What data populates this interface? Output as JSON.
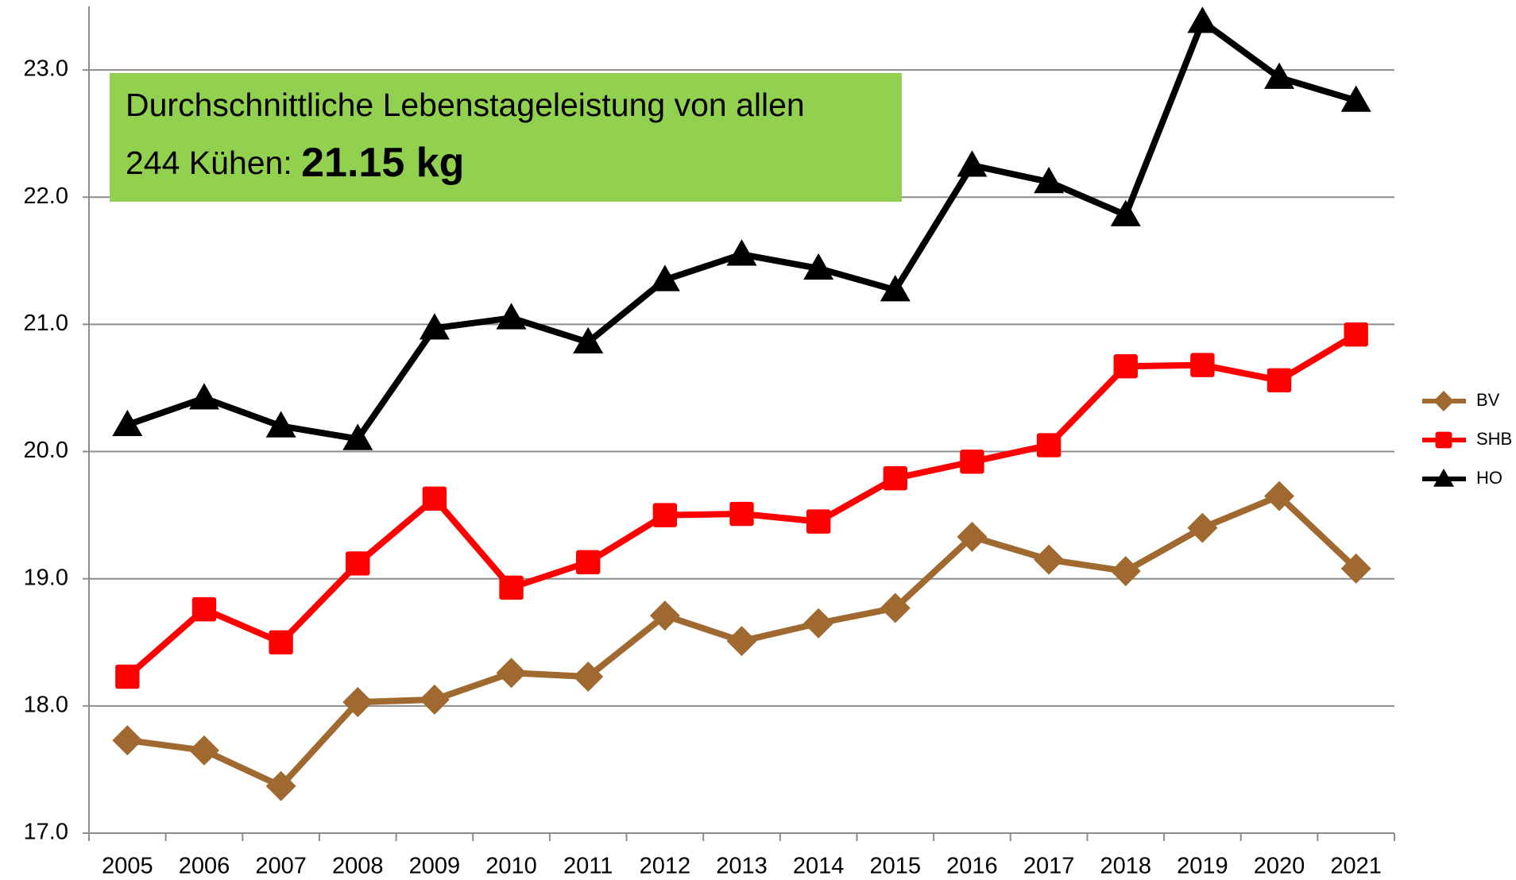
{
  "chart_data": {
    "type": "line",
    "annotation": {
      "line1": "Durchschnittliche Lebenstageleistung von allen",
      "line2": "244 Kühen: ",
      "highlight": "21.15 kg",
      "background": "#92d050"
    },
    "categories": [
      "2005",
      "2006",
      "2007",
      "2008",
      "2009",
      "2010",
      "2011",
      "2012",
      "2013",
      "2014",
      "2015",
      "2016",
      "2017",
      "2018",
      "2019",
      "2020",
      "2021"
    ],
    "series": [
      {
        "name": "BV",
        "color": "#a0692f",
        "marker": "diamond",
        "values": [
          17.73,
          17.65,
          17.37,
          18.03,
          18.05,
          18.26,
          18.23,
          18.71,
          18.51,
          18.65,
          18.77,
          19.33,
          19.15,
          19.06,
          19.4,
          19.65,
          19.08
        ]
      },
      {
        "name": "SHB",
        "color": "#ff0000",
        "marker": "square",
        "values": [
          18.23,
          18.76,
          18.5,
          19.12,
          19.63,
          18.93,
          19.13,
          19.5,
          19.51,
          19.45,
          19.79,
          19.92,
          20.05,
          20.67,
          20.68,
          20.56,
          20.92
        ]
      },
      {
        "name": "HO",
        "color": "#000000",
        "marker": "triangle",
        "values": [
          20.21,
          20.42,
          20.2,
          20.1,
          20.97,
          21.05,
          20.86,
          21.35,
          21.55,
          21.44,
          21.27,
          22.25,
          22.12,
          21.86,
          23.38,
          22.94,
          22.76
        ]
      }
    ],
    "ylim": [
      17,
      23.5
    ],
    "yticks": [
      {
        "value": 17,
        "label": "17.0"
      },
      {
        "value": 18,
        "label": "18.0"
      },
      {
        "value": 19,
        "label": "19.0"
      },
      {
        "value": 20,
        "label": "20.0"
      },
      {
        "value": 21,
        "label": "21.0"
      },
      {
        "value": 22,
        "label": "22.0"
      },
      {
        "value": 23,
        "label": "23.0"
      }
    ],
    "grid": true,
    "legend": "right"
  }
}
